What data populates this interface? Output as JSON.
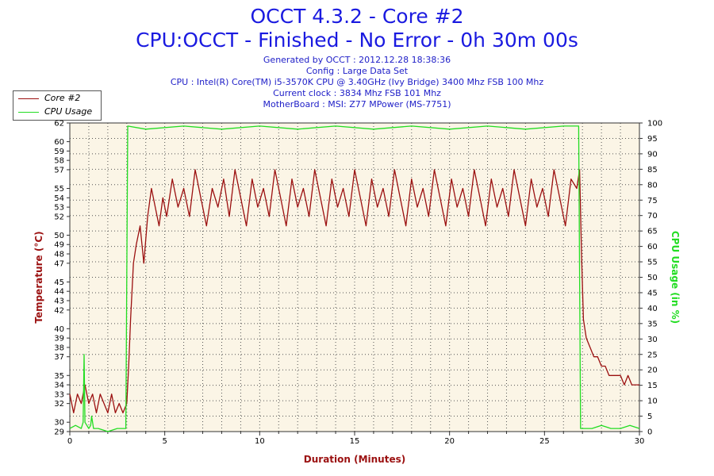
{
  "chart_data": {
    "type": "line",
    "title": "OCCT 4.3.2 - Core #2",
    "subtitle": "CPU:OCCT - Finished - No Error - 0h 30m 00s",
    "info_lines": [
      "Generated by OCCT : 2012.12.28 18:38:36",
      "Config : Large Data Set",
      "CPU : Intel(R) Core(TM) i5-3570K CPU @ 3.40GHz (Ivy Bridge) 3400 Mhz FSB 100 Mhz",
      "Current clock : 3834 Mhz FSB 101 Mhz",
      "MotherBoard : MSI: Z77 MPower (MS-7751)"
    ],
    "xlabel": "Duration (Minutes)",
    "ylabel_left": "Temperature (°C)",
    "ylabel_right": "CPU Usage (in %)",
    "xlim": [
      0,
      30
    ],
    "ylim_left": [
      29,
      62
    ],
    "ylim_right": [
      0,
      100
    ],
    "x_ticks": [
      0,
      5,
      10,
      15,
      20,
      25,
      30
    ],
    "y_ticks_left": [
      29,
      30,
      32,
      33,
      34,
      35,
      37,
      38,
      39,
      40,
      42,
      43,
      44,
      45,
      47,
      48,
      49,
      50,
      52,
      53,
      54,
      55,
      57,
      58,
      59,
      60,
      62
    ],
    "y_ticks_right": [
      0,
      5,
      10,
      15,
      20,
      25,
      30,
      35,
      40,
      45,
      50,
      55,
      60,
      65,
      70,
      75,
      80,
      85,
      90,
      95,
      100
    ],
    "grid": true,
    "legend_position": "top-left",
    "series": [
      {
        "name": "Core #2",
        "axis": "left",
        "color": "#9b1010",
        "x": [
          0,
          0.2,
          0.4,
          0.6,
          0.8,
          1.0,
          1.2,
          1.4,
          1.6,
          1.8,
          2.0,
          2.2,
          2.4,
          2.6,
          2.8,
          3.0,
          3.1,
          3.2,
          3.35,
          3.5,
          3.7,
          3.9,
          4.1,
          4.3,
          4.5,
          4.7,
          4.9,
          5.1,
          5.4,
          5.7,
          6.0,
          6.3,
          6.6,
          6.9,
          7.2,
          7.5,
          7.8,
          8.1,
          8.4,
          8.7,
          9.0,
          9.3,
          9.6,
          9.9,
          10.2,
          10.5,
          10.8,
          11.1,
          11.4,
          11.7,
          12.0,
          12.3,
          12.6,
          12.9,
          13.2,
          13.5,
          13.8,
          14.1,
          14.4,
          14.7,
          15.0,
          15.3,
          15.6,
          15.9,
          16.2,
          16.5,
          16.8,
          17.1,
          17.4,
          17.7,
          18.0,
          18.3,
          18.6,
          18.9,
          19.2,
          19.5,
          19.8,
          20.1,
          20.4,
          20.7,
          21.0,
          21.3,
          21.6,
          21.9,
          22.2,
          22.5,
          22.8,
          23.1,
          23.4,
          23.7,
          24.0,
          24.3,
          24.6,
          24.9,
          25.2,
          25.5,
          25.8,
          26.1,
          26.4,
          26.7,
          26.85,
          26.95,
          27.05,
          27.2,
          27.4,
          27.6,
          27.8,
          28.0,
          28.2,
          28.4,
          28.6,
          28.8,
          29.0,
          29.2,
          29.4,
          29.6,
          29.8,
          30.0
        ],
        "values": [
          33,
          31,
          33,
          32,
          34,
          32,
          33,
          31,
          33,
          32,
          31,
          33,
          31,
          32,
          31,
          32,
          36,
          41,
          47,
          49,
          51,
          47,
          52,
          55,
          53,
          51,
          54,
          52,
          56,
          53,
          55,
          52,
          57,
          54,
          51,
          55,
          53,
          56,
          52,
          57,
          54,
          51,
          56,
          53,
          55,
          52,
          57,
          54,
          51,
          56,
          53,
          55,
          52,
          57,
          54,
          51,
          56,
          53,
          55,
          52,
          57,
          54,
          51,
          56,
          53,
          55,
          52,
          57,
          54,
          51,
          56,
          53,
          55,
          52,
          57,
          54,
          51,
          56,
          53,
          55,
          52,
          57,
          54,
          51,
          56,
          53,
          55,
          52,
          57,
          54,
          51,
          56,
          53,
          55,
          52,
          57,
          54,
          51,
          56,
          55,
          57,
          48,
          41,
          39,
          38,
          37,
          37,
          36,
          36,
          35,
          35,
          35,
          35,
          34,
          35,
          34,
          34,
          34
        ]
      },
      {
        "name": "CPU Usage",
        "axis": "right",
        "color": "#22dd22",
        "x": [
          0,
          0.3,
          0.6,
          0.7,
          0.75,
          0.8,
          1.0,
          1.1,
          1.15,
          1.25,
          1.5,
          2.0,
          2.5,
          2.95,
          3.0,
          3.05,
          4.0,
          6.0,
          8.0,
          10.0,
          12.0,
          14.0,
          16.0,
          18.0,
          20.0,
          22.0,
          24.0,
          26.0,
          26.8,
          26.85,
          26.9,
          27.5,
          28.0,
          28.5,
          29.0,
          29.5,
          30.0
        ],
        "values": [
          1,
          2,
          1,
          3,
          25,
          3,
          1,
          2,
          5,
          1,
          1,
          0,
          1,
          1,
          50,
          99,
          98,
          99,
          98,
          99,
          98,
          99,
          98,
          99,
          98,
          99,
          98,
          99,
          99,
          50,
          1,
          1,
          2,
          1,
          1,
          2,
          1
        ]
      }
    ]
  }
}
